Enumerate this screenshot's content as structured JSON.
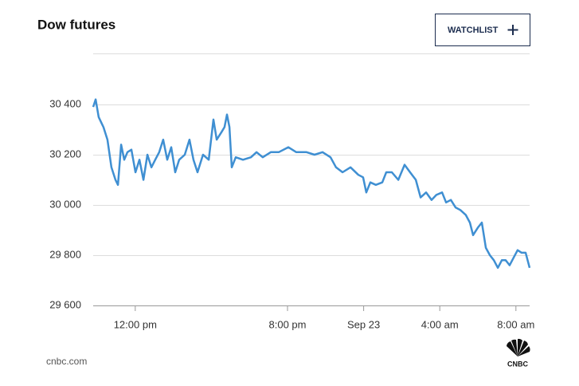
{
  "chart_data": {
    "type": "line",
    "title": "Dow futures",
    "button": "WATCHLIST",
    "source": "cnbc.com",
    "logo_text": "CNBC",
    "color": "#3f8fd2",
    "grid": true,
    "x": [
      9.79,
      9.92,
      10.08,
      10.33,
      10.54,
      10.75,
      10.96,
      11.09,
      11.26,
      11.42,
      11.59,
      11.8,
      12.01,
      12.22,
      12.43,
      12.64,
      12.85,
      13.05,
      13.26,
      13.47,
      13.68,
      13.89,
      14.1,
      14.31,
      14.6,
      14.85,
      15.06,
      15.27,
      15.56,
      15.86,
      16.11,
      16.28,
      16.53,
      16.69,
      16.82,
      16.95,
      17.07,
      17.28,
      17.66,
      18.08,
      18.37,
      18.7,
      19.12,
      19.54,
      20.04,
      20.46,
      21.0,
      21.42,
      21.84,
      22.26,
      22.55,
      22.89,
      23.31,
      23.72,
      23.97,
      24.14,
      24.35,
      24.64,
      24.98,
      25.19,
      25.48,
      25.82,
      26.15,
      26.44,
      26.74,
      26.99,
      27.28,
      27.57,
      27.82,
      28.12,
      28.33,
      28.58,
      28.83,
      29.08,
      29.37,
      29.58,
      29.75,
      30.0,
      30.21,
      30.42,
      30.63,
      30.84,
      31.05,
      31.26,
      31.46,
      31.67,
      31.88,
      32.09,
      32.3,
      32.51,
      32.72
    ],
    "values": [
      30390,
      30420,
      30350,
      30310,
      30260,
      30150,
      30100,
      30080,
      30240,
      30180,
      30210,
      30220,
      30130,
      30180,
      30100,
      30200,
      30150,
      30180,
      30210,
      30260,
      30180,
      30230,
      30130,
      30180,
      30200,
      30260,
      30180,
      30130,
      30200,
      30180,
      30340,
      30260,
      30290,
      30310,
      30360,
      30310,
      30150,
      30190,
      30180,
      30190,
      30210,
      30190,
      30210,
      30210,
      30230,
      30210,
      30210,
      30200,
      30210,
      30190,
      30150,
      30130,
      30150,
      30120,
      30110,
      30050,
      30090,
      30080,
      30090,
      30130,
      30130,
      30100,
      30160,
      30130,
      30100,
      30030,
      30050,
      30020,
      30040,
      30050,
      30010,
      30020,
      29990,
      29980,
      29960,
      29930,
      29880,
      29910,
      29930,
      29830,
      29800,
      29780,
      29750,
      29780,
      29780,
      29760,
      29790,
      29820,
      29810,
      29810,
      29750
    ],
    "xlim": [
      9.79,
      32.72
    ],
    "xticks": [
      {
        "value": 12,
        "label": "12:00 pm"
      },
      {
        "value": 20,
        "label": "8:00 pm"
      },
      {
        "value": 24,
        "label": "Sep 23"
      },
      {
        "value": 28,
        "label": "4:00 am"
      },
      {
        "value": 32,
        "label": "8:00 am"
      }
    ],
    "ylim": [
      29600,
      30600
    ],
    "yticks": [
      {
        "value": 29600,
        "label": "29 600"
      },
      {
        "value": 29800,
        "label": "29 800"
      },
      {
        "value": 30000,
        "label": "30 000"
      },
      {
        "value": 30200,
        "label": "30 200"
      },
      {
        "value": 30400,
        "label": "30 400"
      }
    ]
  }
}
